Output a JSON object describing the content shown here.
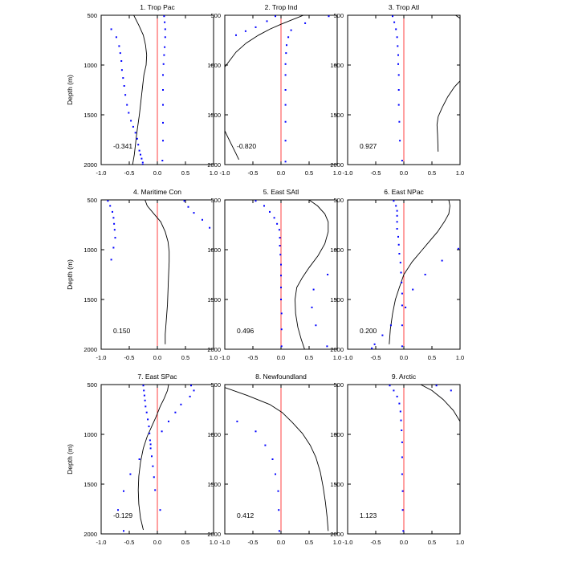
{
  "figure": {
    "y_axis_label": "Depth (m)",
    "x_ticks": [
      "-1.0",
      "-0.5",
      "0.0",
      "0.5",
      "1.0"
    ],
    "y_ticks": [
      "500",
      "1000",
      "1500",
      "2000"
    ],
    "colors": {
      "zero_line": "#ff4040",
      "dots": "#0000ff",
      "curve": "#000000"
    }
  },
  "chart_data": [
    {
      "type": "line",
      "title": "1. Trop Pac",
      "value_label": "-0.341",
      "xlim": [
        -1,
        1
      ],
      "ylim": [
        2000,
        500
      ],
      "curve": {
        "x": [
          -0.42,
          -0.33,
          -0.25,
          -0.21,
          -0.19,
          -0.2,
          -0.24,
          -0.28,
          -0.32,
          -0.37,
          -0.41,
          -0.44
        ],
        "y": [
          500,
          600,
          700,
          800,
          900,
          1000,
          1100,
          1300,
          1500,
          1700,
          1900,
          2000
        ]
      },
      "dots": [
        {
          "x": [
            0.12,
            0.13,
            0.14,
            0.14,
            0.13,
            0.12,
            0.11,
            0.1,
            0.1,
            0.1,
            0.1,
            0.1,
            0.09
          ],
          "y": [
            510,
            570,
            640,
            720,
            820,
            900,
            990,
            1100,
            1250,
            1400,
            1580,
            1760,
            1960
          ]
        },
        {
          "x": [
            -0.82,
            -0.73,
            -0.68,
            -0.66,
            -0.64,
            -0.63,
            -0.61,
            -0.59,
            -0.57,
            -0.54,
            -0.51,
            -0.47,
            -0.43,
            -0.39,
            -0.36,
            -0.34,
            -0.32,
            -0.3,
            -0.28,
            -0.26,
            -0.26
          ],
          "y": [
            640,
            720,
            810,
            880,
            960,
            1050,
            1130,
            1210,
            1300,
            1400,
            1480,
            1560,
            1620,
            1680,
            1740,
            1800,
            1860,
            1900,
            1940,
            1980,
            2000
          ]
        }
      ]
    },
    {
      "type": "line",
      "title": "2. Trop Ind",
      "value_label": "-0.820",
      "xlim": [
        -1,
        1
      ],
      "ylim": [
        2000,
        500
      ],
      "curve": {
        "x": [
          0.4,
          0.2,
          0.0,
          -0.2,
          -0.4,
          -0.62,
          -0.8,
          -1.0
        ],
        "y": [
          500,
          545,
          590,
          640,
          700,
          780,
          870,
          1020
        ],
        "x2": [
          -1.0,
          -0.95,
          -0.88,
          -0.8,
          -0.75
        ],
        "y2": [
          1660,
          1720,
          1800,
          1890,
          1950
        ]
      },
      "dots": [
        {
          "x": [
            0.85,
            0.43,
            0.18,
            0.13,
            0.1,
            0.09,
            0.08,
            0.08,
            0.08,
            0.08,
            0.08,
            0.08,
            0.08
          ],
          "y": [
            510,
            580,
            650,
            720,
            800,
            880,
            990,
            1100,
            1250,
            1400,
            1570,
            1760,
            1970
          ]
        },
        {
          "x": [
            -0.1,
            -0.25,
            -0.45,
            -0.63,
            -0.8
          ],
          "y": [
            510,
            560,
            620,
            660,
            700
          ]
        }
      ]
    },
    {
      "type": "line",
      "title": "3. Trop Atl",
      "value_label": "0.927",
      "xlim": [
        -1,
        1
      ],
      "ylim": [
        2000,
        500
      ],
      "curve": {
        "x": [
          0.92,
          1.0
        ],
        "y": [
          500,
          530
        ],
        "x2": [
          1.0,
          0.9,
          0.78,
          0.68,
          0.61,
          0.59,
          0.6,
          0.61
        ],
        "y2": [
          1160,
          1220,
          1320,
          1430,
          1520,
          1600,
          1700,
          1870
        ]
      },
      "dots": [
        {
          "x": [
            -0.2,
            -0.17,
            -0.14,
            -0.12,
            -0.11,
            -0.1,
            -0.1,
            -0.09,
            -0.09,
            -0.09,
            -0.08,
            -0.07,
            -0.03
          ],
          "y": [
            510,
            570,
            640,
            720,
            810,
            900,
            990,
            1100,
            1250,
            1400,
            1570,
            1760,
            1960
          ]
        }
      ]
    },
    {
      "type": "line",
      "title": "4. Maritime Con",
      "value_label": "0.150",
      "xlim": [
        -1,
        1
      ],
      "ylim": [
        2000,
        500
      ],
      "curve": {
        "x": [
          -0.22,
          -0.18,
          -0.06,
          0.06,
          0.14,
          0.19,
          0.21,
          0.21,
          0.2,
          0.19,
          0.18,
          0.16,
          0.14,
          0.14
        ],
        "y": [
          500,
          560,
          640,
          720,
          820,
          920,
          1020,
          1120,
          1250,
          1400,
          1550,
          1700,
          1850,
          1950
        ]
      },
      "dots": [
        {
          "x": [
            -0.88,
            -0.84,
            -0.8,
            -0.78,
            -0.77,
            -0.76,
            -0.75,
            -0.78,
            -0.82
          ],
          "y": [
            510,
            560,
            620,
            680,
            740,
            800,
            880,
            980,
            1100
          ]
        },
        {
          "x": [
            0.48,
            0.55,
            0.65,
            0.8,
            0.93
          ],
          "y": [
            510,
            570,
            630,
            700,
            780
          ]
        }
      ]
    },
    {
      "type": "line",
      "title": "5. East SAtl",
      "value_label": "0.496",
      "xlim": [
        -1,
        1
      ],
      "ylim": [
        2000,
        500
      ],
      "curve": {
        "x": [
          0.5,
          0.65,
          0.78,
          0.84,
          0.84,
          0.78,
          0.66,
          0.5,
          0.38,
          0.28,
          0.25,
          0.26,
          0.3,
          0.36,
          0.42
        ],
        "y": [
          500,
          560,
          640,
          720,
          820,
          940,
          1060,
          1180,
          1280,
          1380,
          1500,
          1640,
          1780,
          1900,
          2000
        ]
      },
      "dots": [
        {
          "x": [
            -0.45,
            -0.3,
            -0.2,
            -0.12,
            -0.07,
            -0.03,
            -0.02,
            -0.02,
            -0.01,
            0.0,
            0.0,
            0.0,
            0.0,
            0.01,
            0.01,
            0.01
          ],
          "y": [
            510,
            560,
            620,
            680,
            740,
            800,
            880,
            960,
            1050,
            1150,
            1260,
            1380,
            1500,
            1640,
            1800,
            1970
          ]
        },
        {
          "x": [
            0.83,
            0.58,
            0.55,
            0.62,
            0.82
          ],
          "y": [
            1250,
            1400,
            1580,
            1760,
            1970
          ]
        }
      ]
    },
    {
      "type": "line",
      "title": "6. East NPac",
      "value_label": "0.200",
      "xlim": [
        -1,
        1
      ],
      "ylim": [
        2000,
        500
      ],
      "curve": {
        "x": [
          0.8,
          0.82,
          0.8,
          0.72,
          0.6,
          0.45,
          0.3,
          0.15,
          0.0,
          -0.08,
          -0.15,
          -0.2,
          -0.24,
          -0.26
        ],
        "y": [
          500,
          560,
          640,
          720,
          820,
          920,
          1020,
          1120,
          1250,
          1380,
          1500,
          1640,
          1800,
          1950
        ]
      },
      "dots": [
        {
          "x": [
            -0.18,
            -0.14,
            -0.12,
            -0.12,
            -0.12,
            -0.12,
            -0.1,
            -0.09,
            -0.08,
            -0.06,
            -0.05,
            -0.04,
            -0.03,
            -0.03,
            -0.03,
            -0.03
          ],
          "y": [
            510,
            560,
            610,
            660,
            720,
            790,
            870,
            950,
            1040,
            1130,
            1230,
            1330,
            1440,
            1560,
            1760,
            1970
          ]
        },
        {
          "x": [
            0.97,
            0.68,
            0.38,
            0.16,
            0.03,
            -0.23,
            -0.38,
            -0.52,
            -0.57
          ],
          "y": [
            990,
            1110,
            1250,
            1400,
            1580,
            1760,
            1860,
            1950,
            1990
          ]
        }
      ]
    },
    {
      "type": "line",
      "title": "7. East SPac",
      "value_label": "-0.129",
      "xlim": [
        -1,
        1
      ],
      "ylim": [
        2000,
        500
      ],
      "curve": {
        "x": [
          0.2,
          0.18,
          0.12,
          0.05,
          -0.02,
          -0.1,
          -0.18,
          -0.25,
          -0.3,
          -0.33,
          -0.34,
          -0.33,
          -0.3,
          -0.25
        ],
        "y": [
          500,
          560,
          640,
          720,
          820,
          920,
          1020,
          1140,
          1280,
          1420,
          1560,
          1700,
          1840,
          1960
        ]
      },
      "dots": [
        {
          "x": [
            -0.25,
            -0.24,
            -0.23,
            -0.22,
            -0.21,
            -0.19,
            -0.17,
            -0.15,
            -0.14,
            -0.13,
            -0.12,
            -0.1,
            -0.08,
            -0.06,
            -0.04
          ],
          "y": [
            510,
            560,
            610,
            660,
            720,
            780,
            850,
            920,
            990,
            1060,
            1140,
            1220,
            1320,
            1430,
            1560
          ]
        },
        {
          "x": [
            0.6,
            0.65,
            0.58,
            0.42,
            0.32,
            0.2,
            0.08,
            -0.12,
            -0.32,
            -0.48,
            -0.6,
            -0.7,
            -0.6,
            0.05
          ],
          "y": [
            510,
            560,
            620,
            700,
            780,
            870,
            970,
            1100,
            1250,
            1400,
            1570,
            1760,
            1970,
            1760
          ]
        }
      ]
    },
    {
      "type": "line",
      "title": "8. Newfoundland",
      "value_label": "0.412",
      "xlim": [
        -1,
        1
      ],
      "ylim": [
        2000,
        500
      ],
      "curve": {
        "x": [
          -1.0,
          -0.6,
          -0.2,
          0.02,
          0.2,
          0.38,
          0.52,
          0.62,
          0.7,
          0.75,
          0.79,
          0.82,
          0.84
        ],
        "y": [
          530,
          610,
          700,
          780,
          880,
          990,
          1110,
          1230,
          1380,
          1530,
          1680,
          1830,
          1970
        ]
      },
      "dots": [
        {
          "x": [
            -0.78,
            -0.45,
            -0.28,
            -0.15,
            -0.1,
            -0.05,
            -0.04,
            -0.03
          ],
          "y": [
            870,
            970,
            1110,
            1250,
            1400,
            1570,
            1760,
            1970
          ]
        }
      ]
    },
    {
      "type": "line",
      "title": "9. Arctic",
      "value_label": "1.123",
      "xlim": [
        -1,
        1
      ],
      "ylim": [
        2000,
        500
      ],
      "curve": {
        "x": [
          0.3,
          0.5,
          0.7,
          0.88,
          1.0
        ],
        "y": [
          500,
          560,
          650,
          760,
          870
        ]
      },
      "dots": [
        {
          "x": [
            -0.25,
            -0.18,
            -0.12,
            -0.08,
            -0.06,
            -0.05,
            -0.04,
            -0.03,
            -0.03,
            -0.03,
            -0.02,
            -0.02,
            -0.01
          ],
          "y": [
            510,
            560,
            620,
            690,
            770,
            860,
            960,
            1080,
            1230,
            1400,
            1570,
            1760,
            1970
          ]
        },
        {
          "x": [
            0.58,
            0.84
          ],
          "y": [
            510,
            560
          ]
        }
      ]
    }
  ]
}
